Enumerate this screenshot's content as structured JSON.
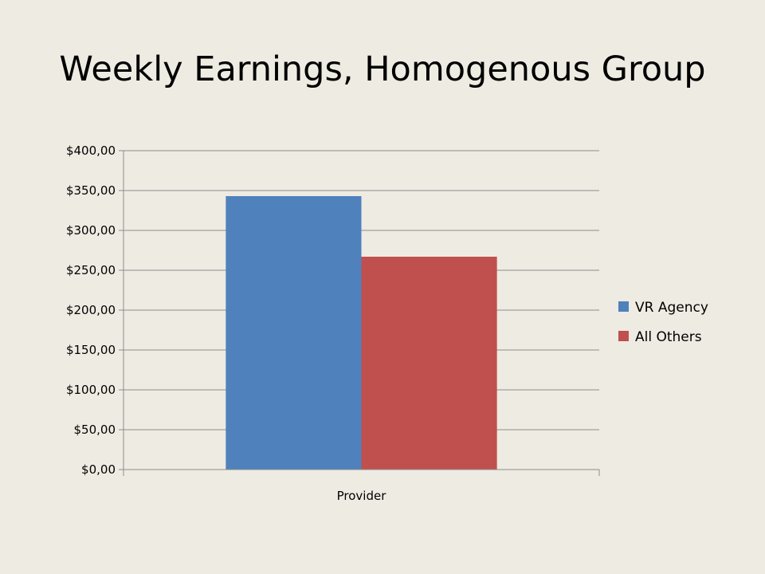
{
  "slide": {
    "title": "Weekly Earnings, Homogenous Group"
  },
  "chart_data": {
    "type": "bar",
    "categories": [
      "Provider"
    ],
    "series": [
      {
        "name": "VR Agency",
        "values": [
          343
        ],
        "color": "#4f81bd"
      },
      {
        "name": "All Others",
        "values": [
          267
        ],
        "color": "#c0504d"
      }
    ],
    "ylim": [
      0,
      400
    ],
    "yticks": [
      0,
      50,
      100,
      150,
      200,
      250,
      300,
      350,
      400
    ],
    "ytick_labels": [
      "$0,00",
      "$50,00",
      "$100,00",
      "$150,00",
      "$200,00",
      "$250,00",
      "$300,00",
      "$350,00",
      "$400,00"
    ],
    "gridlines": true,
    "legend_position": "right"
  }
}
